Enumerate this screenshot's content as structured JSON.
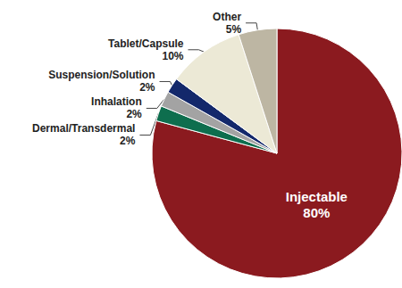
{
  "chart_data": {
    "type": "pie",
    "categories": [
      "Injectable",
      "Dermal/Transdermal",
      "Inhalation",
      "Suspension/Solution",
      "Tablet/Capsule",
      "Other"
    ],
    "values": [
      80,
      2,
      2,
      2,
      10,
      5
    ],
    "value_labels": [
      "80%",
      "2%",
      "2%",
      "2%",
      "10%",
      "5%"
    ],
    "colors": [
      "#8b1a1f",
      "#0e6e4e",
      "#a3a3a3",
      "#13286b",
      "#ece9d6",
      "#bdb6a3"
    ],
    "data_labels": true
  }
}
